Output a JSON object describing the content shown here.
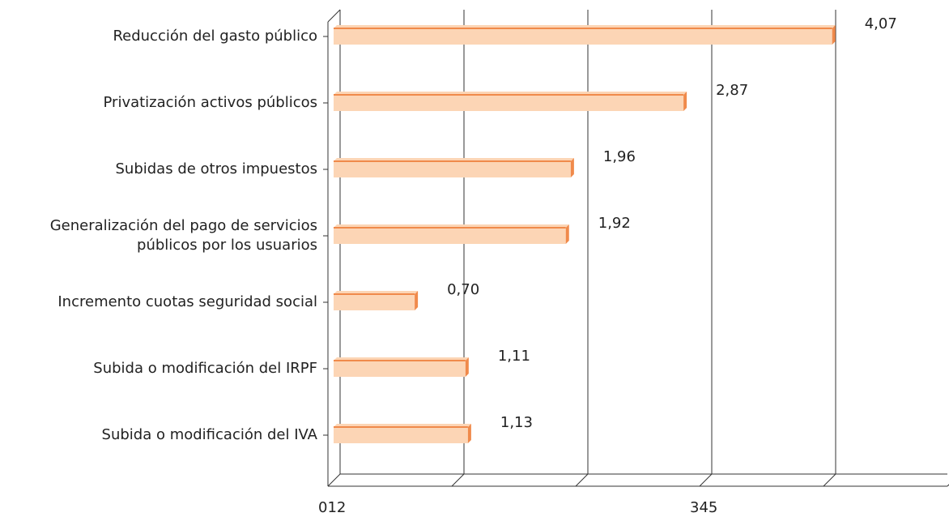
{
  "chart_data": {
    "type": "hbar3d",
    "categories": [
      "Reducción del gasto público",
      "Privatización activos públicos",
      "Subidas de otros impuestos",
      "Generalización del pago de servicios\npúblicos por los usuarios",
      "Incremento cuotas seguridad social",
      "Subida o modificación del IRPF",
      "Subida o modificación del IVA"
    ],
    "values": [
      4.07,
      2.87,
      1.96,
      1.92,
      0.7,
      1.11,
      1.13
    ],
    "value_labels": [
      "4,07",
      "2,87",
      "1,96",
      "1,92",
      "0,70",
      "1,11",
      "1,13"
    ],
    "color": "#fcd5b5",
    "edge_color": "#f08a4b",
    "xlim": [
      0,
      5
    ],
    "xticks": [
      {
        "value": 0,
        "label": "012"
      },
      {
        "value": 1,
        "label": null
      },
      {
        "value": 2,
        "label": null
      },
      {
        "value": 3,
        "label": "345"
      },
      {
        "value": 4,
        "label": null
      },
      {
        "value": 5,
        "label": null
      }
    ],
    "grid": true
  }
}
